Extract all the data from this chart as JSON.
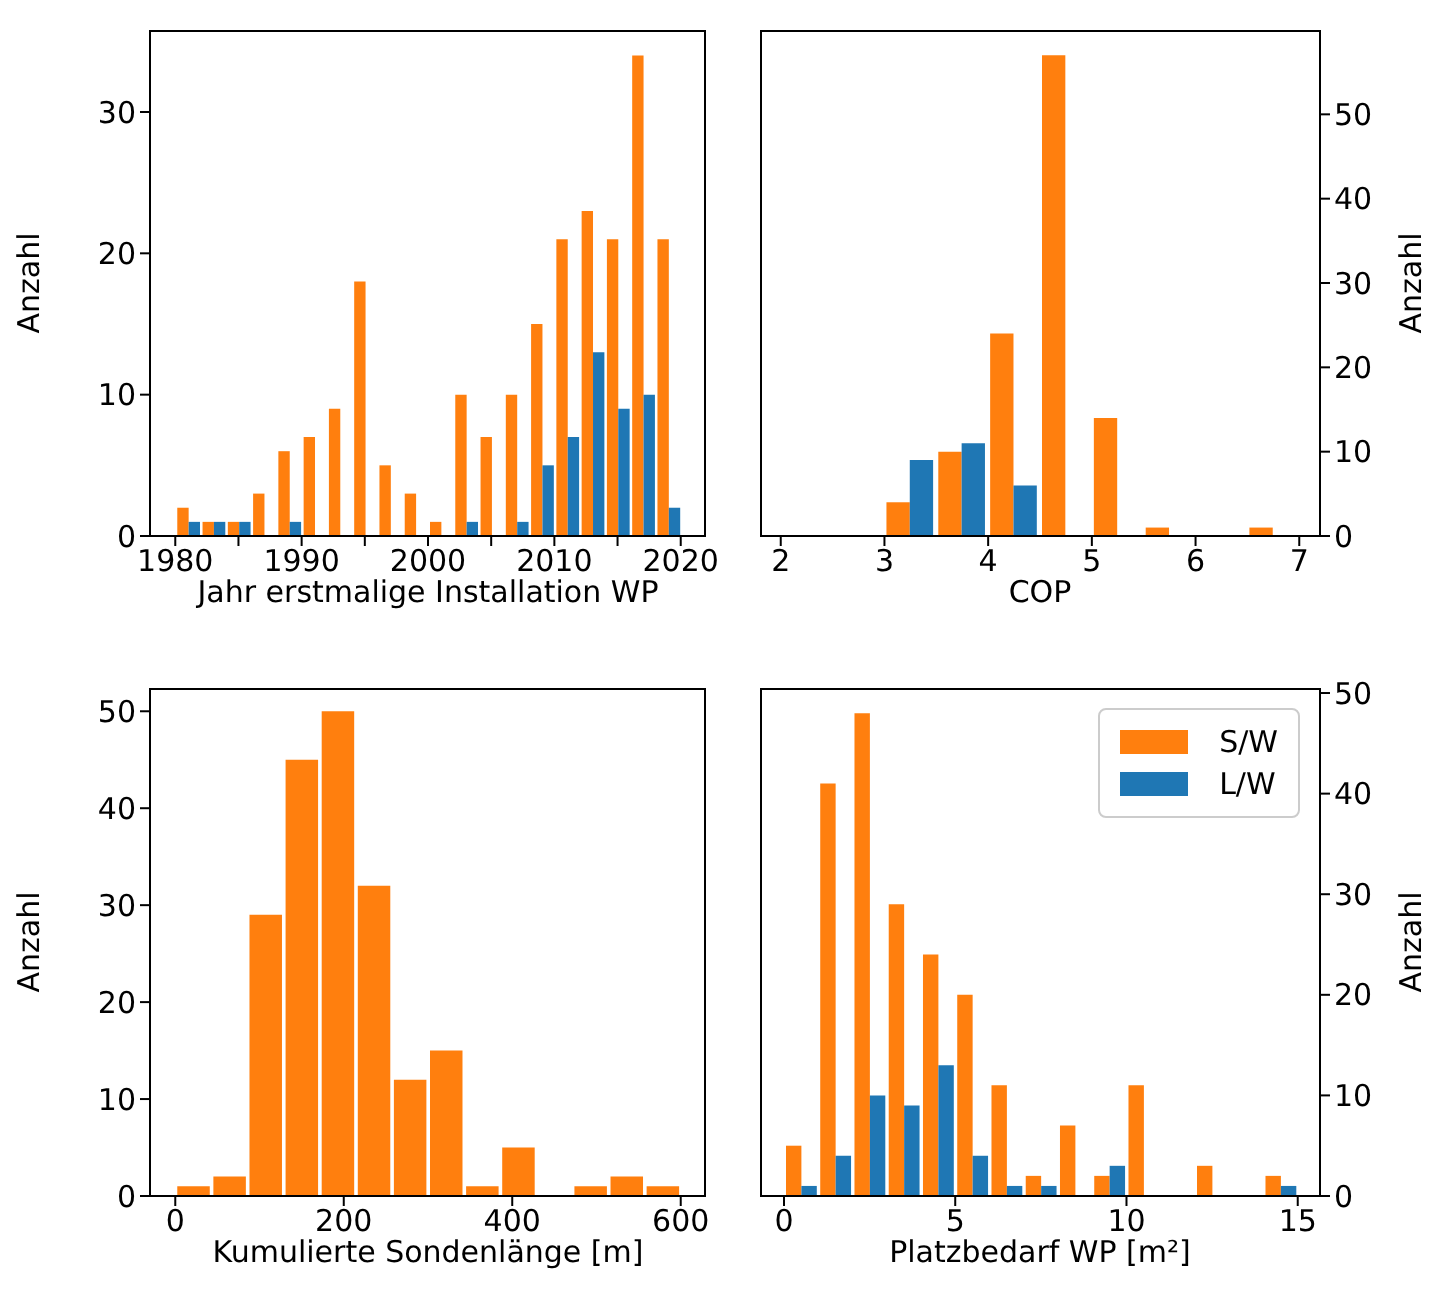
{
  "chart_data": [
    {
      "type": "histogram",
      "xlabel": "Jahr erstmalige Installation WP",
      "ylabel": "Anzahl",
      "bins": [
        1980,
        1982,
        1984,
        1986,
        1988,
        1990,
        1992,
        1994,
        1996,
        1998,
        2000,
        2002,
        2004,
        2006,
        2008,
        2010,
        2012,
        2014,
        2016,
        2018,
        2020
      ],
      "series": [
        {
          "color": "#ff7f0e",
          "values": [
            2,
            1,
            1,
            3,
            6,
            7,
            9,
            18,
            5,
            3,
            1,
            10,
            7,
            10,
            15,
            21,
            23,
            21,
            34,
            21
          ]
        },
        {
          "color": "#1f77b4",
          "values": [
            1,
            1,
            1,
            0,
            1,
            0,
            0,
            0,
            0,
            0,
            0,
            1,
            0,
            1,
            5,
            7,
            13,
            9,
            10,
            2
          ]
        }
      ],
      "xlim": [
        1978,
        2022
      ],
      "xticks": [
        1980,
        {
          "value": 1985,
          "label": null
        },
        1990,
        {
          "value": 1995,
          "label": null
        },
        2000,
        {
          "value": 2005,
          "label": null
        },
        2010,
        {
          "value": 2015,
          "label": null
        },
        2020
      ],
      "ylim": [
        0,
        35.8
      ],
      "yticks": [
        0,
        10,
        20,
        30
      ],
      "grid": false,
      "legend": false
    },
    {
      "type": "histogram",
      "xlabel": "COP",
      "ylabel": "Anzahl",
      "bins": [
        3,
        3.5,
        4,
        4.5,
        5,
        5.5,
        6,
        6.5,
        7
      ],
      "series": [
        {
          "color": "#ff7f0e",
          "values": [
            4,
            10,
            24,
            57,
            14,
            1,
            0,
            1
          ]
        },
        {
          "color": "#1f77b4",
          "values": [
            9,
            11,
            6,
            0,
            0,
            0,
            0,
            0
          ]
        }
      ],
      "xlim": [
        1.8,
        7.2
      ],
      "xticks": [
        2,
        3,
        4,
        5,
        6,
        7
      ],
      "ylim": [
        0,
        60
      ],
      "yticks": [
        0,
        10,
        20,
        30,
        40,
        50
      ],
      "grid": false,
      "legend": false
    },
    {
      "type": "histogram",
      "xlabel": "Kumulierte Sondenlänge [m]",
      "ylabel": "Anzahl",
      "bins": [
        0,
        42.86,
        85.71,
        128.57,
        171.43,
        214.29,
        257.14,
        300,
        342.86,
        385.71,
        428.57,
        471.43,
        514.29,
        557.14,
        600
      ],
      "series": [
        {
          "color": "#ff7f0e",
          "values": [
            1,
            2,
            29,
            45,
            50,
            32,
            12,
            15,
            1,
            5,
            0,
            1,
            2,
            1
          ]
        }
      ],
      "xlim": [
        -30,
        630
      ],
      "xticks": [
        0,
        200,
        400,
        600
      ],
      "ylim": [
        0,
        52.4
      ],
      "yticks": [
        0,
        10,
        20,
        30,
        40,
        50
      ],
      "grid": false,
      "legend": false
    },
    {
      "type": "histogram",
      "xlabel": "Platzbedarf WP [m²]",
      "ylabel": "Anzahl",
      "bins": [
        0,
        1,
        2,
        3,
        4,
        5,
        6,
        7,
        8,
        9,
        10,
        11,
        12,
        13,
        14,
        15
      ],
      "series": [
        {
          "name": "S/W",
          "color": "#ff7f0e",
          "values": [
            5,
            41,
            48,
            29,
            24,
            20,
            11,
            2,
            7,
            2,
            11,
            0,
            3,
            0,
            2
          ]
        },
        {
          "name": "L/W",
          "color": "#1f77b4",
          "values": [
            1,
            4,
            10,
            9,
            13,
            4,
            1,
            1,
            0,
            3,
            0,
            0,
            0,
            0,
            1
          ]
        }
      ],
      "xlim": [
        -0.7,
        15.65
      ],
      "xticks": [
        0,
        5,
        10,
        15
      ],
      "ylim": [
        0,
        50.5
      ],
      "yticks": [
        0,
        10,
        20,
        30,
        40,
        50
      ],
      "grid": false,
      "legend": "top right"
    }
  ]
}
